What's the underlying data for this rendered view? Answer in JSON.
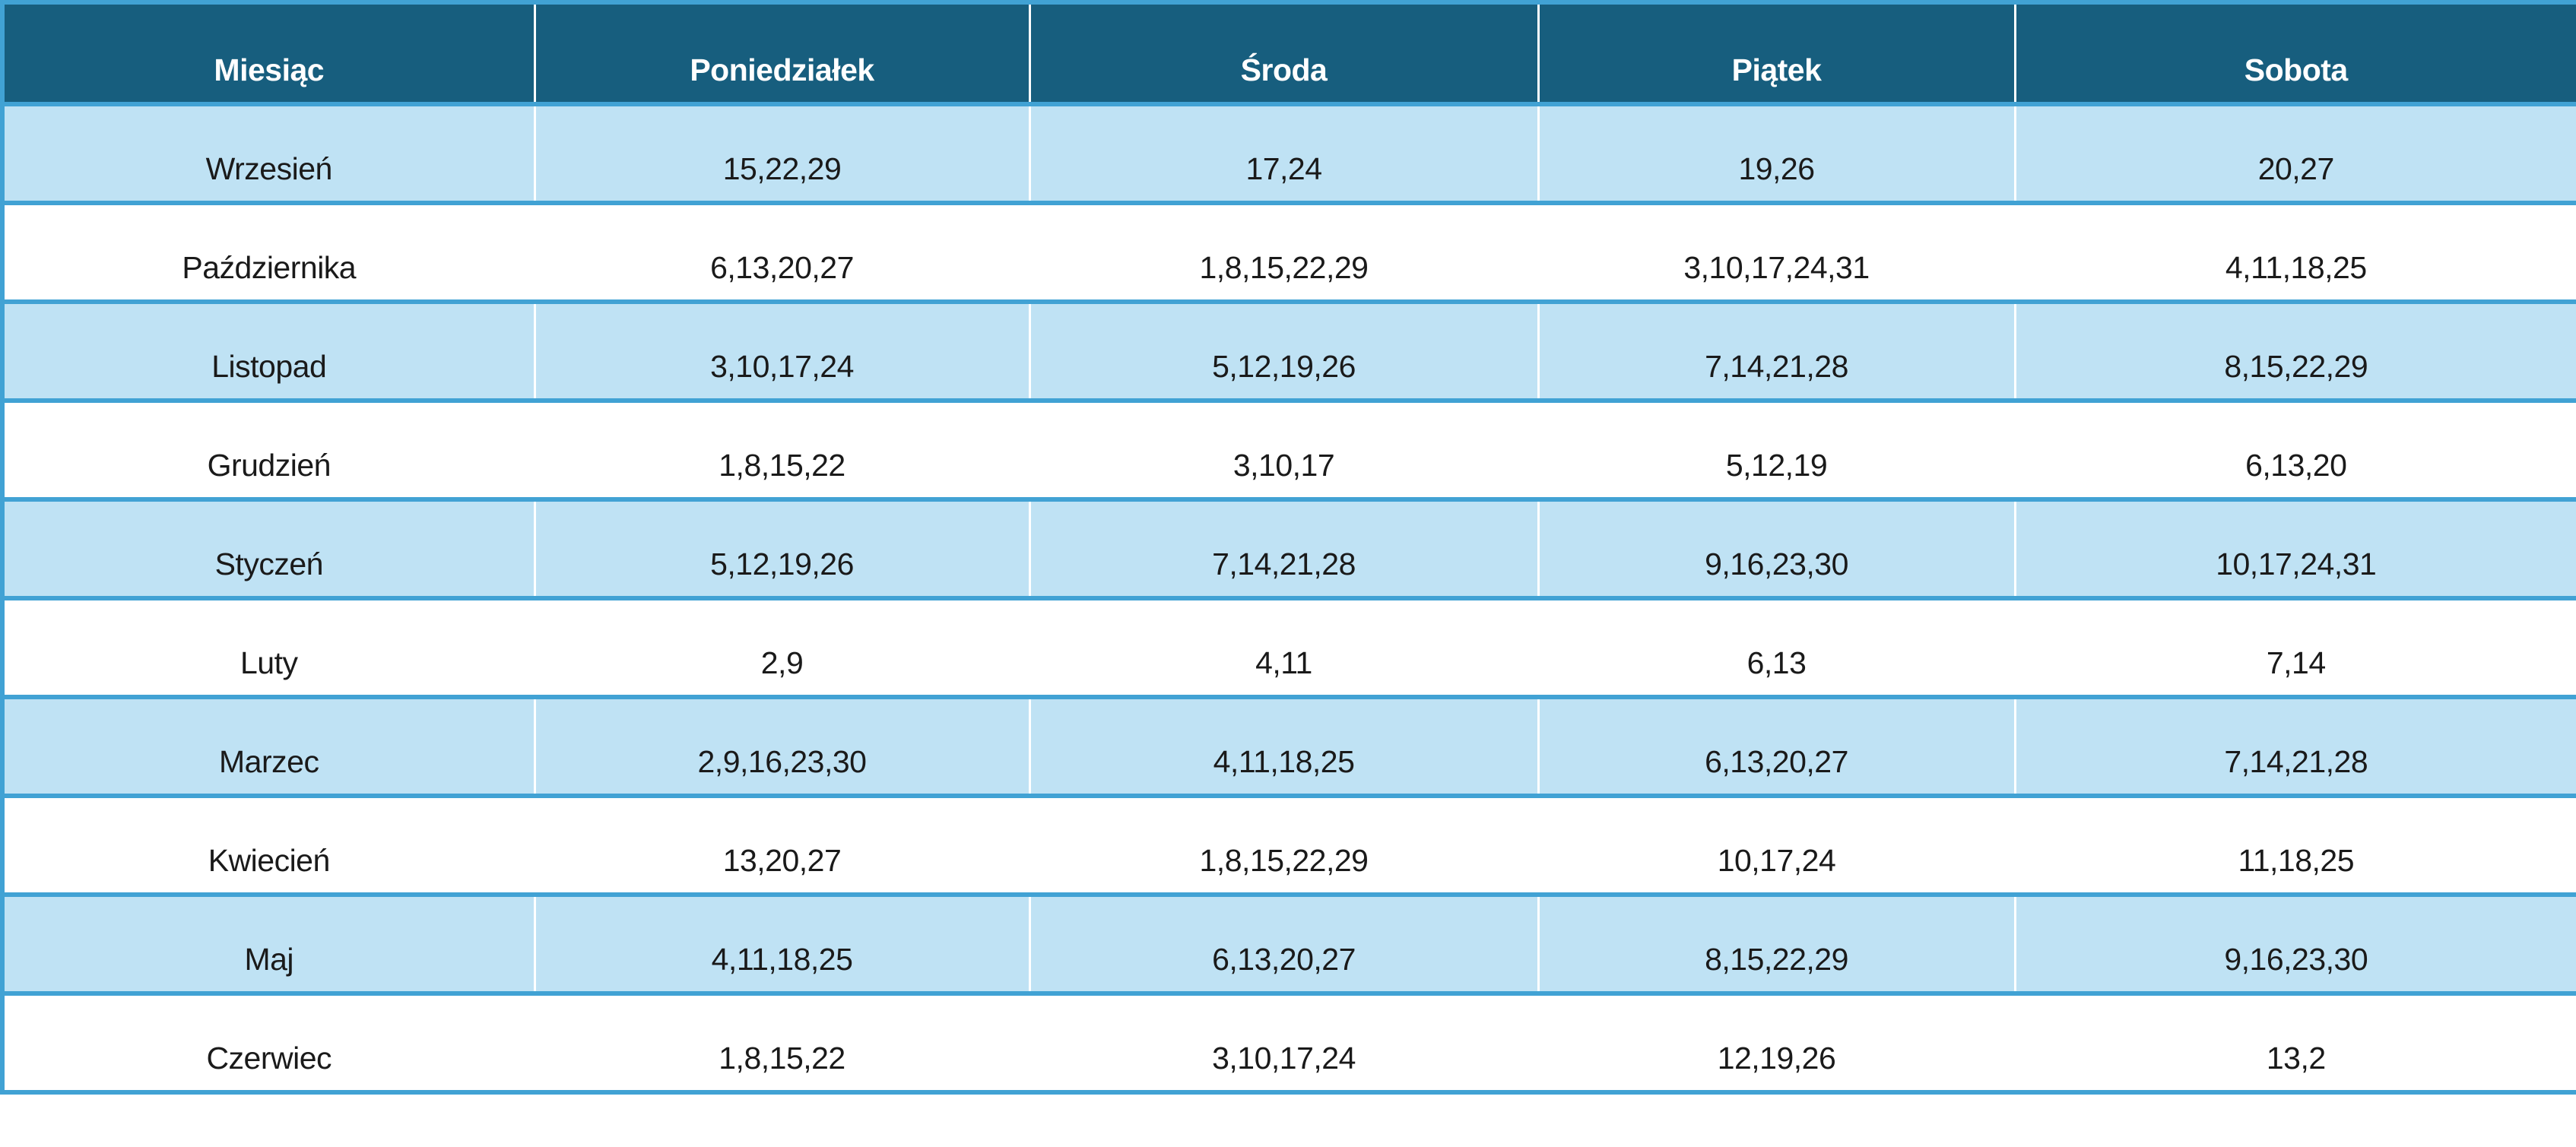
{
  "colors": {
    "header_bg": "#175E7E",
    "header_text": "#FFFFFF",
    "row_alt_bg": "#BFE2F4",
    "table_border": "#41A2D4",
    "body_text": "#1A1A1A"
  },
  "table": {
    "columns": [
      "Miesiąc",
      "Poniedziałek",
      "Środa",
      "Piątek",
      "Sobota"
    ],
    "rows": [
      {
        "month": "Wrzesień",
        "values": [
          "15,22,29",
          "17,24",
          "19,26",
          "20,27"
        ]
      },
      {
        "month": "Października",
        "values": [
          "6,13,20,27",
          "1,8,15,22,29",
          "3,10,17,24,31",
          "4,11,18,25"
        ]
      },
      {
        "month": "Listopad",
        "values": [
          "3,10,17,24",
          "5,12,19,26",
          "7,14,21,28",
          "8,15,22,29"
        ]
      },
      {
        "month": "Grudzień",
        "values": [
          "1,8,15,22",
          "3,10,17",
          "5,12,19",
          "6,13,20"
        ]
      },
      {
        "month": "Styczeń",
        "values": [
          "5,12,19,26",
          "7,14,21,28",
          "9,16,23,30",
          "10,17,24,31"
        ]
      },
      {
        "month": "Luty",
        "values": [
          "2,9",
          "4,11",
          "6,13",
          "7,14"
        ]
      },
      {
        "month": "Marzec",
        "values": [
          "2,9,16,23,30",
          "4,11,18,25",
          "6,13,20,27",
          "7,14,21,28"
        ]
      },
      {
        "month": "Kwiecień",
        "values": [
          "13,20,27",
          "1,8,15,22,29",
          "10,17,24",
          "11,18,25"
        ]
      },
      {
        "month": "Maj",
        "values": [
          "4,11,18,25",
          "6,13,20,27",
          "8,15,22,29",
          "9,16,23,30"
        ]
      },
      {
        "month": "Czerwiec",
        "values": [
          "1,8,15,22",
          "3,10,17,24",
          "12,19,26",
          "13,2"
        ]
      }
    ]
  }
}
